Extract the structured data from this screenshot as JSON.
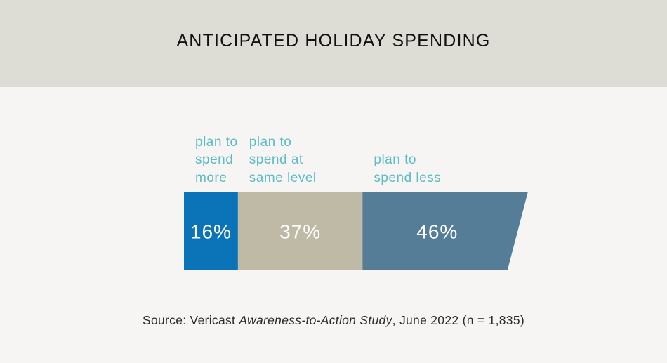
{
  "header": {
    "title": "ANTICIPATED HOLIDAY SPENDING"
  },
  "chart_data": {
    "type": "bar",
    "orientation": "horizontal-stacked",
    "categories": [
      "plan to spend more",
      "plan to spend at same level",
      "plan to spend less"
    ],
    "label_lines": [
      [
        "plan to",
        "spend",
        "more"
      ],
      [
        "plan to",
        "spend at",
        "same level"
      ],
      [
        "plan to",
        "spend less"
      ]
    ],
    "values": [
      16,
      37,
      46
    ],
    "value_labels": [
      "16%",
      "37%",
      "46%"
    ],
    "unit": "%",
    "colors": [
      "#0b73b8",
      "#bebaa6",
      "#557d97"
    ],
    "label_color": "#5bbcc6",
    "title": "ANTICIPATED HOLIDAY SPENDING"
  },
  "source": {
    "prefix": "Source: Vericast ",
    "study": "Awareness-to-Action Study",
    "suffix": ", June 2022 (n = 1,835)"
  }
}
